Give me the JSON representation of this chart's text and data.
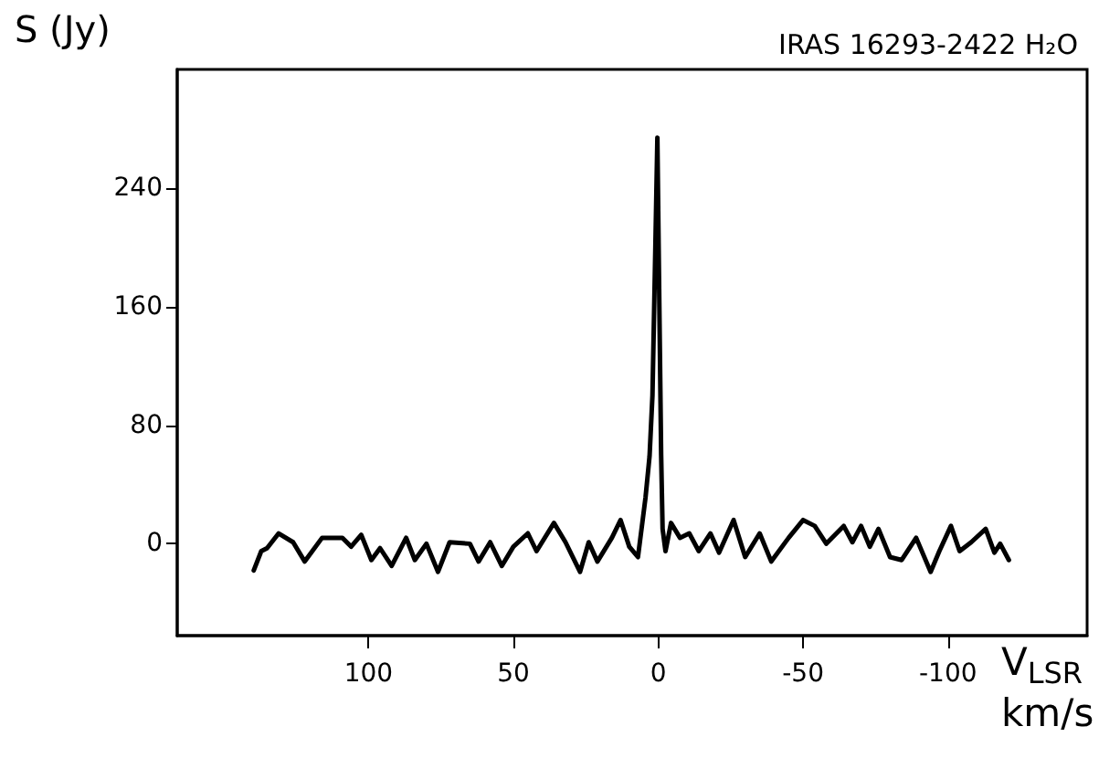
{
  "chart_data": {
    "type": "line",
    "title": "IRAS 16293-2422 H₂O",
    "ylabel": "S (Jy)",
    "xlabel": "V$_{LSR}$ km/s",
    "xlim": [
      166,
      -148
    ],
    "xticks": [
      100,
      50,
      0,
      -50,
      -100
    ],
    "ylim": [
      -62,
      320
    ],
    "yticks": [
      0,
      80,
      160,
      240
    ],
    "grid": false,
    "marker": "none",
    "line_style": "solid",
    "series": [
      {
        "color": "#000000",
        "x": [
          139.6,
          137,
          135,
          131,
          126,
          122,
          116,
          109,
          106,
          102.5,
          99,
          96,
          92,
          87,
          84,
          80,
          76,
          72,
          65,
          62,
          58,
          54,
          50,
          45,
          42,
          36,
          32,
          27,
          24,
          21,
          16,
          13,
          10,
          7,
          4.4,
          3,
          2,
          1,
          0.3,
          -0.3,
          -1,
          -1.5,
          -2.5,
          -4.4,
          -7.5,
          -10.7,
          -14,
          -18,
          -21,
          -26,
          -30,
          -35,
          -39,
          -45,
          -50,
          -54,
          -58,
          -64,
          -67,
          -70,
          -73,
          -76,
          -80,
          -84,
          -89,
          -94,
          -97,
          -101,
          -104,
          -108,
          -113,
          -116,
          -118,
          -121
        ],
        "values": [
          -18,
          -5,
          -3,
          7,
          1,
          -12,
          4,
          4,
          -2,
          6,
          -11,
          -3,
          -15,
          4,
          -11,
          0,
          -19,
          1,
          0,
          -12,
          1,
          -15,
          -2,
          7,
          -5,
          14,
          1,
          -19,
          1,
          -12,
          4,
          16,
          -2,
          -9,
          31,
          59,
          100,
          200,
          274,
          174,
          60,
          10,
          -5,
          14,
          4,
          7,
          -5,
          7,
          -6,
          16,
          -9,
          7,
          -12,
          4,
          16,
          12,
          0,
          12,
          1,
          12,
          -2,
          10,
          -9,
          -11,
          4,
          -19,
          -5,
          12,
          -5,
          1,
          10,
          -6,
          0,
          -11
        ]
      }
    ]
  }
}
